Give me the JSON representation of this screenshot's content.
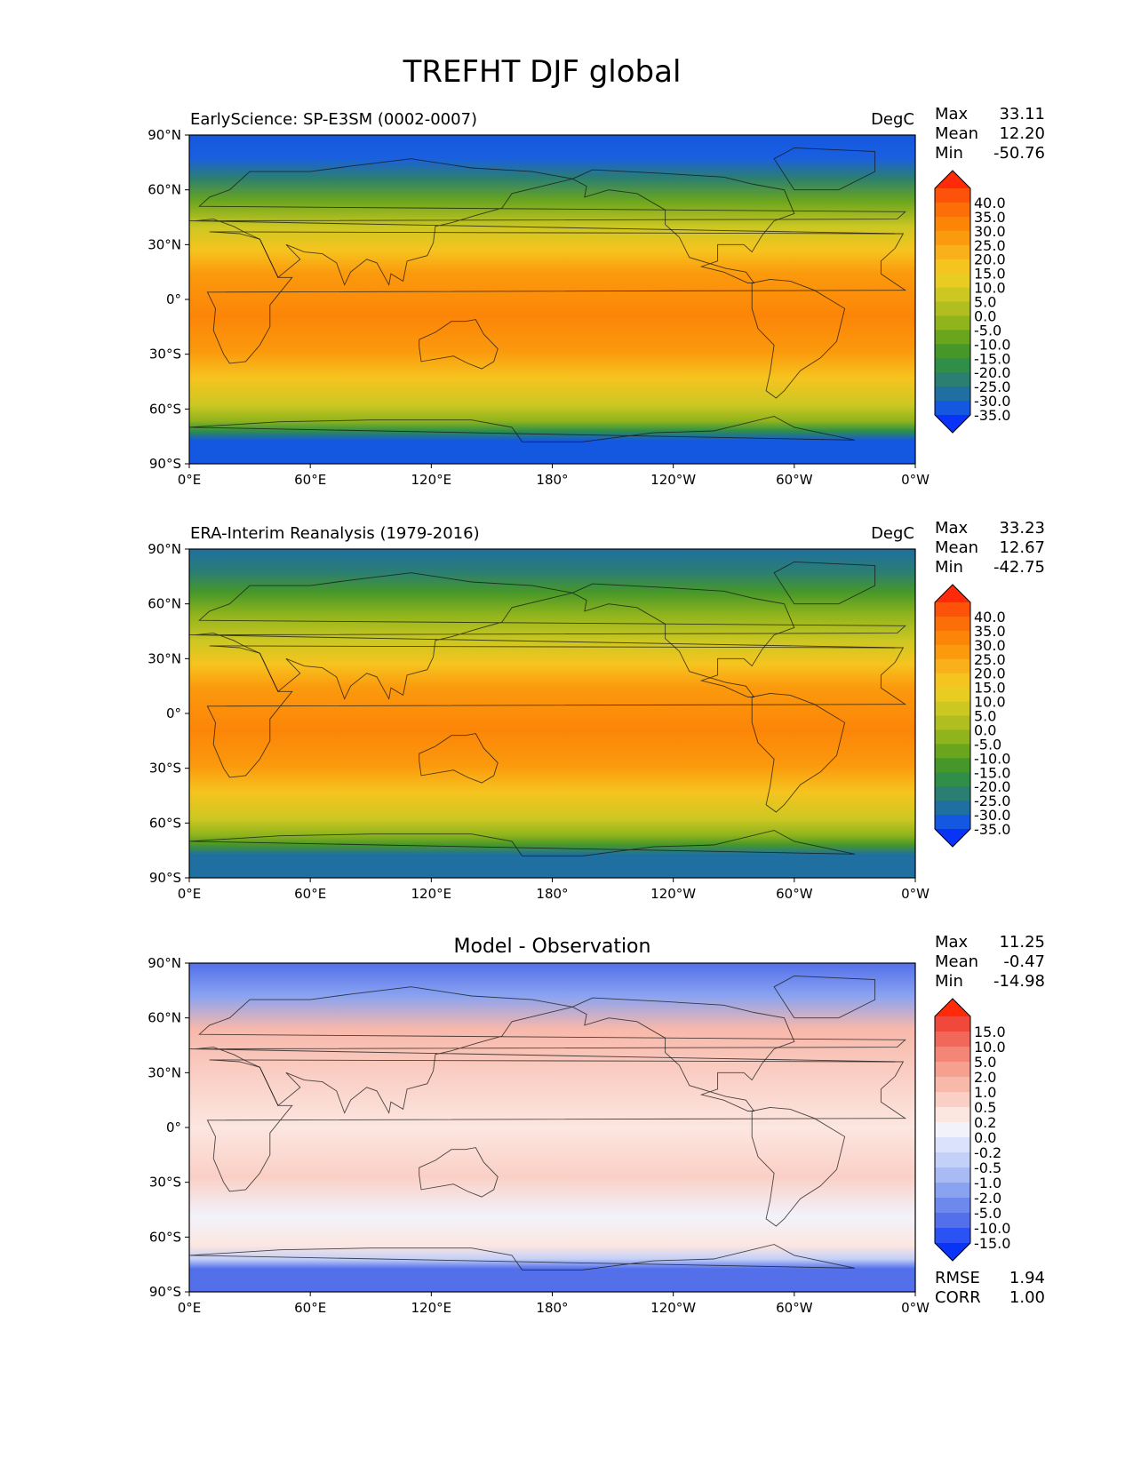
{
  "figure": {
    "title": "TREFHT DJF global"
  },
  "axes": {
    "x_ticks": [
      "0°E",
      "60°E",
      "120°E",
      "180°",
      "120°W",
      "60°W",
      "0°W"
    ],
    "y_ticks": [
      "90°N",
      "60°N",
      "30°N",
      "0°",
      "30°S",
      "60°S",
      "90°S"
    ]
  },
  "panels": [
    {
      "id": "model",
      "left_title": "EarlyScience: SP-E3SM (0002-0007)",
      "center_title": "",
      "right_title": "DegC",
      "stats": [
        {
          "label": "Max",
          "value": "33.11"
        },
        {
          "label": "Mean",
          "value": "12.20"
        },
        {
          "label": "Min",
          "value": "-50.76"
        }
      ],
      "colorbar": {
        "labels": [
          "40.0",
          "35.0",
          "30.0",
          "25.0",
          "20.0",
          "15.0",
          "10.0",
          "5.0",
          "0.0",
          "-5.0",
          "-10.0",
          "-15.0",
          "-20.0",
          "-25.0",
          "-30.0",
          "-35.0"
        ],
        "colors": [
          "#fe2a0a",
          "#fd5209",
          "#fc6e08",
          "#fc8508",
          "#fb9a0d",
          "#fab01a",
          "#f6c41f",
          "#e9cc22",
          "#cdc722",
          "#b0bf1f",
          "#90b41c",
          "#6aa51e",
          "#46972a",
          "#2f8f48",
          "#2b7e72",
          "#1f6fa0",
          "#1457e0",
          "#0a33f8"
        ]
      },
      "footer_stats": []
    },
    {
      "id": "obs",
      "left_title": "ERA-Interim Reanalysis (1979-2016)",
      "center_title": "",
      "right_title": "DegC",
      "stats": [
        {
          "label": "Max",
          "value": "33.23"
        },
        {
          "label": "Mean",
          "value": "12.67"
        },
        {
          "label": "Min",
          "value": "-42.75"
        }
      ],
      "colorbar": {
        "labels": [
          "40.0",
          "35.0",
          "30.0",
          "25.0",
          "20.0",
          "15.0",
          "10.0",
          "5.0",
          "0.0",
          "-5.0",
          "-10.0",
          "-15.0",
          "-20.0",
          "-25.0",
          "-30.0",
          "-35.0"
        ],
        "colors": [
          "#fe2a0a",
          "#fd5209",
          "#fc6e08",
          "#fc8508",
          "#fb9a0d",
          "#fab01a",
          "#f6c41f",
          "#e9cc22",
          "#cdc722",
          "#b0bf1f",
          "#90b41c",
          "#6aa51e",
          "#46972a",
          "#2f8f48",
          "#2b7e72",
          "#1f6fa0",
          "#1457e0",
          "#0a33f8"
        ]
      },
      "footer_stats": []
    },
    {
      "id": "diff",
      "left_title": "",
      "center_title": "Model - Observation",
      "right_title": "",
      "stats": [
        {
          "label": "Max",
          "value": "11.25"
        },
        {
          "label": "Mean",
          "value": "-0.47"
        },
        {
          "label": "Min",
          "value": "-14.98"
        }
      ],
      "colorbar": {
        "labels": [
          "15.0",
          "10.0",
          "5.0",
          "2.0",
          "1.0",
          "0.5",
          "0.2",
          "0.0",
          "-0.2",
          "-0.5",
          "-1.0",
          "-2.0",
          "-5.0",
          "-10.0",
          "-15.0"
        ],
        "colors": [
          "#fe2a0a",
          "#f0493b",
          "#f1685b",
          "#f38676",
          "#f6a090",
          "#f8b8aa",
          "#fad0c6",
          "#fce6e0",
          "#f2f2fb",
          "#dbe2fb",
          "#c3d0f8",
          "#a8bbf5",
          "#8aa3f1",
          "#6d89ee",
          "#5370ea",
          "#2a52f5",
          "#0a33f8"
        ]
      },
      "footer_stats": [
        {
          "label": "RMSE",
          "value": "1.94"
        },
        {
          "label": "CORR",
          "value": "1.00"
        }
      ]
    }
  ]
}
